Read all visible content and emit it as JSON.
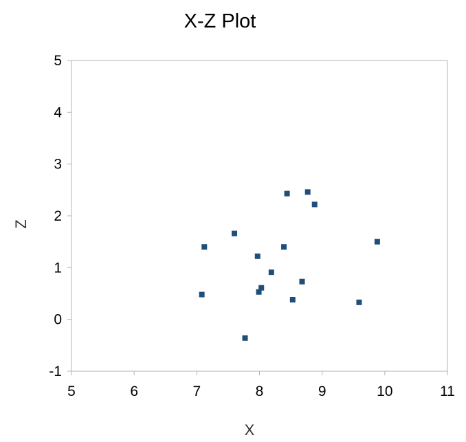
{
  "chart_data": {
    "type": "scatter",
    "title": "X-Z Plot",
    "xlabel": "X",
    "ylabel": "Z",
    "xlim": [
      5,
      11
    ],
    "ylim": [
      -1,
      5
    ],
    "xticks": [
      "5",
      "6",
      "7",
      "8",
      "9",
      "10",
      "11"
    ],
    "yticks": [
      "-1",
      "0",
      "1",
      "2",
      "3",
      "4",
      "5"
    ],
    "grid": false,
    "marker_color": "#1f4e79",
    "marker": "square",
    "points": [
      {
        "x": 7.08,
        "y": 0.48
      },
      {
        "x": 7.12,
        "y": 1.4
      },
      {
        "x": 7.6,
        "y": 1.66
      },
      {
        "x": 7.77,
        "y": -0.36
      },
      {
        "x": 7.97,
        "y": 1.22
      },
      {
        "x": 7.99,
        "y": 0.53
      },
      {
        "x": 8.03,
        "y": 0.61
      },
      {
        "x": 8.19,
        "y": 0.91
      },
      {
        "x": 8.39,
        "y": 1.4
      },
      {
        "x": 8.44,
        "y": 2.43
      },
      {
        "x": 8.53,
        "y": 0.38
      },
      {
        "x": 8.68,
        "y": 0.73
      },
      {
        "x": 8.77,
        "y": 2.46
      },
      {
        "x": 8.88,
        "y": 2.22
      },
      {
        "x": 9.59,
        "y": 0.33
      },
      {
        "x": 9.88,
        "y": 1.5
      }
    ]
  }
}
